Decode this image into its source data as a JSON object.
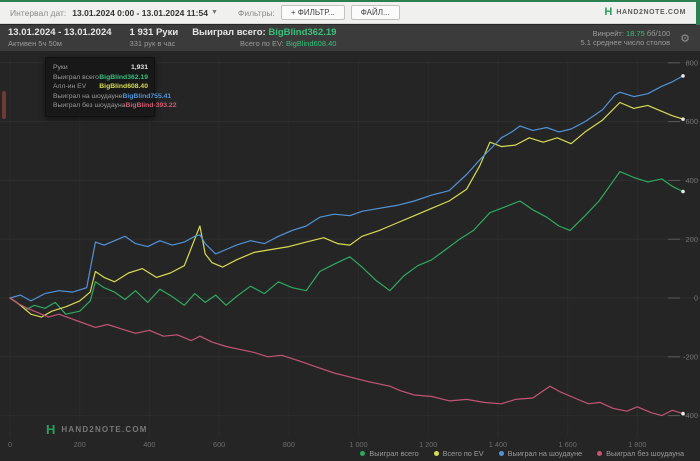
{
  "topbar": {
    "interval_label": "Интервал дат:",
    "interval_value": "13.01.2024 0:00 - 13.01.2024 11:54",
    "filters_label": "Фильтры:",
    "filter_button": "+ ФИЛЬТР...",
    "file_button": "ФАЙЛ...",
    "brand": "HAND2NOTE.COM",
    "logo_glyph": "H"
  },
  "header": {
    "date_range": "13.01.2024 - 13.01.2024",
    "active_time": "Активен 5ч 50м",
    "hands": "1 931 Руки",
    "hands_per_hour": "331 рук в час",
    "won_label": "Выиграл всего:",
    "won_value": "BigBlind362.19",
    "ev_label": "Всего по EV:",
    "ev_value": "BigBlind608.40",
    "winrate_label": "Винрейт:",
    "winrate_value": "18.75",
    "winrate_units": "бб/100",
    "avg_tables": "5.1 среднее число столов"
  },
  "tooltip": {
    "rows": [
      {
        "label": "Руки",
        "value": "1,931",
        "color": "#e2e2e2"
      },
      {
        "label": "Выиграл всего",
        "value": "BigBlind362.19",
        "color": "#35c07a"
      },
      {
        "label": "Алл-ин EV",
        "value": "BigBlind608.40",
        "color": "#d6dc52"
      },
      {
        "label": "Выиграл на шоудауне",
        "value": "BigBlind755.41",
        "color": "#5193d6"
      },
      {
        "label": "Выиграл без шоудауна",
        "value": "BigBlind-393.22",
        "color": "#d05c72"
      }
    ]
  },
  "watermark": {
    "brand": "HAND2NOTE.COM",
    "logo_glyph": "H"
  },
  "chart_data": {
    "type": "line",
    "title": "",
    "xlabel": "hands",
    "ylabel": "big blinds",
    "xlim": [
      0,
      1931
    ],
    "ylim": [
      -480,
      840
    ],
    "grid": true,
    "legend_position": "bottom-right",
    "x_ticks": [
      {
        "label": "0",
        "value": 0
      },
      {
        "label": "200",
        "value": 200
      },
      {
        "label": "400",
        "value": 400
      },
      {
        "label": "600",
        "value": 600
      },
      {
        "label": "800",
        "value": 800
      },
      {
        "label": "1 000",
        "value": 1000
      },
      {
        "label": "1 200",
        "value": 1200
      },
      {
        "label": "1 400",
        "value": 1400
      },
      {
        "label": "1 600",
        "value": 1600
      },
      {
        "label": "1 800",
        "value": 1800
      }
    ],
    "y_ticks": [
      800,
      600,
      400,
      200,
      0,
      -200,
      -400
    ],
    "series": [
      {
        "id": "won-total",
        "name": "Выиграл всего",
        "color": "#2eaa60",
        "final_value": 362.19,
        "points": [
          [
            0,
            0
          ],
          [
            20,
            -15
          ],
          [
            45,
            -40
          ],
          [
            70,
            -25
          ],
          [
            100,
            -35
          ],
          [
            130,
            -15
          ],
          [
            160,
            -55
          ],
          [
            200,
            -45
          ],
          [
            230,
            -10
          ],
          [
            245,
            55
          ],
          [
            270,
            35
          ],
          [
            300,
            20
          ],
          [
            330,
            -5
          ],
          [
            360,
            25
          ],
          [
            395,
            -15
          ],
          [
            430,
            30
          ],
          [
            465,
            5
          ],
          [
            500,
            -25
          ],
          [
            530,
            15
          ],
          [
            560,
            -15
          ],
          [
            590,
            10
          ],
          [
            620,
            -25
          ],
          [
            650,
            5
          ],
          [
            690,
            40
          ],
          [
            730,
            15
          ],
          [
            770,
            55
          ],
          [
            810,
            35
          ],
          [
            850,
            25
          ],
          [
            889,
            90
          ],
          [
            930,
            115
          ],
          [
            975,
            140
          ],
          [
            1010,
            105
          ],
          [
            1050,
            60
          ],
          [
            1090,
            25
          ],
          [
            1130,
            75
          ],
          [
            1170,
            110
          ],
          [
            1210,
            130
          ],
          [
            1250,
            165
          ],
          [
            1290,
            200
          ],
          [
            1330,
            230
          ],
          [
            1377,
            290
          ],
          [
            1420,
            310
          ],
          [
            1463,
            330
          ],
          [
            1500,
            300
          ],
          [
            1540,
            275
          ],
          [
            1575,
            245
          ],
          [
            1607,
            230
          ],
          [
            1650,
            280
          ],
          [
            1690,
            330
          ],
          [
            1720,
            380
          ],
          [
            1750,
            430
          ],
          [
            1790,
            410
          ],
          [
            1830,
            395
          ],
          [
            1870,
            405
          ],
          [
            1900,
            380
          ],
          [
            1931,
            362.19
          ]
        ]
      },
      {
        "id": "ev-total",
        "name": "Всего по EV",
        "color": "#d6dc52",
        "final_value": 608.4,
        "points": [
          [
            0,
            0
          ],
          [
            30,
            -25
          ],
          [
            60,
            -55
          ],
          [
            90,
            -65
          ],
          [
            120,
            -45
          ],
          [
            160,
            -30
          ],
          [
            200,
            -10
          ],
          [
            230,
            20
          ],
          [
            245,
            90
          ],
          [
            270,
            70
          ],
          [
            300,
            55
          ],
          [
            340,
            85
          ],
          [
            380,
            100
          ],
          [
            420,
            70
          ],
          [
            460,
            85
          ],
          [
            500,
            110
          ],
          [
            530,
            200
          ],
          [
            545,
            245
          ],
          [
            560,
            150
          ],
          [
            580,
            120
          ],
          [
            610,
            105
          ],
          [
            650,
            130
          ],
          [
            700,
            155
          ],
          [
            750,
            165
          ],
          [
            800,
            175
          ],
          [
            850,
            190
          ],
          [
            900,
            205
          ],
          [
            940,
            185
          ],
          [
            975,
            180
          ],
          [
            1010,
            210
          ],
          [
            1060,
            230
          ],
          [
            1110,
            255
          ],
          [
            1160,
            280
          ],
          [
            1210,
            305
          ],
          [
            1260,
            330
          ],
          [
            1310,
            370
          ],
          [
            1348,
            450
          ],
          [
            1377,
            530
          ],
          [
            1410,
            515
          ],
          [
            1450,
            520
          ],
          [
            1490,
            545
          ],
          [
            1530,
            530
          ],
          [
            1570,
            545
          ],
          [
            1610,
            525
          ],
          [
            1650,
            565
          ],
          [
            1700,
            605
          ],
          [
            1750,
            665
          ],
          [
            1790,
            645
          ],
          [
            1830,
            655
          ],
          [
            1870,
            635
          ],
          [
            1900,
            620
          ],
          [
            1931,
            608.4
          ]
        ]
      },
      {
        "id": "won-showdown",
        "name": "Выиграл на шоудауне",
        "color": "#5193d6",
        "final_value": 755.41,
        "points": [
          [
            0,
            0
          ],
          [
            30,
            10
          ],
          [
            60,
            -10
          ],
          [
            100,
            15
          ],
          [
            140,
            25
          ],
          [
            180,
            20
          ],
          [
            220,
            35
          ],
          [
            245,
            190
          ],
          [
            270,
            180
          ],
          [
            300,
            195
          ],
          [
            330,
            210
          ],
          [
            360,
            185
          ],
          [
            395,
            175
          ],
          [
            430,
            195
          ],
          [
            465,
            180
          ],
          [
            500,
            190
          ],
          [
            530,
            210
          ],
          [
            545,
            215
          ],
          [
            560,
            185
          ],
          [
            590,
            150
          ],
          [
            620,
            165
          ],
          [
            650,
            180
          ],
          [
            690,
            195
          ],
          [
            730,
            185
          ],
          [
            770,
            210
          ],
          [
            810,
            230
          ],
          [
            850,
            245
          ],
          [
            889,
            275
          ],
          [
            930,
            285
          ],
          [
            975,
            280
          ],
          [
            1010,
            295
          ],
          [
            1060,
            305
          ],
          [
            1110,
            315
          ],
          [
            1160,
            330
          ],
          [
            1210,
            350
          ],
          [
            1260,
            365
          ],
          [
            1310,
            420
          ],
          [
            1348,
            470
          ],
          [
            1377,
            505
          ],
          [
            1410,
            545
          ],
          [
            1440,
            565
          ],
          [
            1463,
            585
          ],
          [
            1500,
            570
          ],
          [
            1540,
            580
          ],
          [
            1575,
            565
          ],
          [
            1610,
            575
          ],
          [
            1650,
            600
          ],
          [
            1700,
            640
          ],
          [
            1735,
            690
          ],
          [
            1750,
            700
          ],
          [
            1790,
            685
          ],
          [
            1830,
            695
          ],
          [
            1870,
            720
          ],
          [
            1900,
            735
          ],
          [
            1931,
            755.41
          ]
        ]
      },
      {
        "id": "won-non-showdown",
        "name": "Выиграл без шоудауна",
        "color": "#c35574",
        "final_value": -393.22,
        "points": [
          [
            0,
            0
          ],
          [
            25,
            -20
          ],
          [
            50,
            -35
          ],
          [
            80,
            -50
          ],
          [
            110,
            -65
          ],
          [
            140,
            -55
          ],
          [
            175,
            -70
          ],
          [
            210,
            -85
          ],
          [
            245,
            -100
          ],
          [
            280,
            -90
          ],
          [
            320,
            -105
          ],
          [
            360,
            -120
          ],
          [
            400,
            -110
          ],
          [
            440,
            -130
          ],
          [
            480,
            -125
          ],
          [
            520,
            -145
          ],
          [
            545,
            -130
          ],
          [
            580,
            -150
          ],
          [
            620,
            -165
          ],
          [
            660,
            -175
          ],
          [
            700,
            -185
          ],
          [
            740,
            -200
          ],
          [
            780,
            -195
          ],
          [
            832,
            -215
          ],
          [
            880,
            -235
          ],
          [
            930,
            -255
          ],
          [
            980,
            -270
          ],
          [
            1030,
            -285
          ],
          [
            1090,
            -300
          ],
          [
            1119,
            -315
          ],
          [
            1160,
            -330
          ],
          [
            1210,
            -335
          ],
          [
            1262,
            -350
          ],
          [
            1310,
            -345
          ],
          [
            1360,
            -355
          ],
          [
            1410,
            -360
          ],
          [
            1450,
            -345
          ],
          [
            1500,
            -340
          ],
          [
            1549,
            -300
          ],
          [
            1580,
            -320
          ],
          [
            1620,
            -340
          ],
          [
            1660,
            -360
          ],
          [
            1693,
            -355
          ],
          [
            1730,
            -375
          ],
          [
            1770,
            -385
          ],
          [
            1800,
            -370
          ],
          [
            1840,
            -390
          ],
          [
            1870,
            -400
          ],
          [
            1900,
            -382
          ],
          [
            1931,
            -393.22
          ]
        ]
      }
    ]
  }
}
